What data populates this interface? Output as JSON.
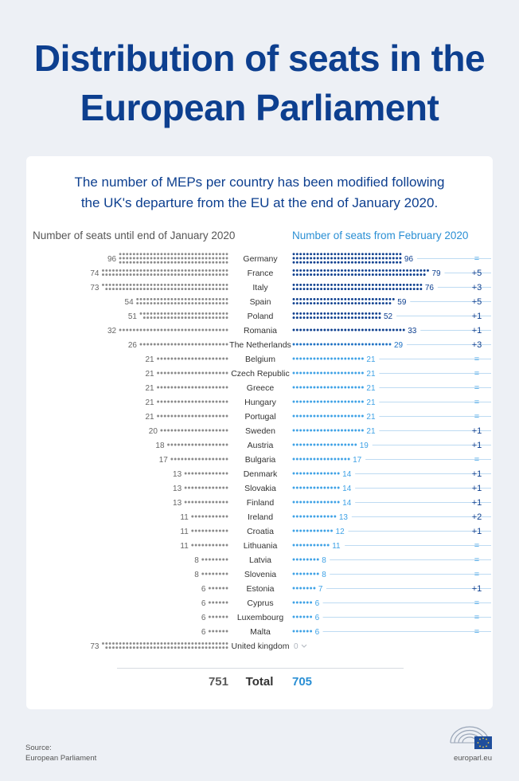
{
  "title": "Distribution of seats in the European Parliament",
  "subtitle_line1": "The number of MEPs per country has been modified following",
  "subtitle_line2": "the UK's departure from the EU at the end of January 2020.",
  "left_header": "Number of seats until end of January 2020",
  "right_header": "Number of seats from February 2020",
  "chart_data": {
    "type": "bar",
    "title": "Distribution of seats in the European Parliament",
    "series": [
      {
        "name": "Number of seats until end of January 2020",
        "color": "#8a8a8a"
      },
      {
        "name": "Number of seats from February 2020",
        "color": "#0d3f8f"
      }
    ],
    "countries": [
      {
        "name": "Germany",
        "old": 96,
        "new": 96,
        "change": "="
      },
      {
        "name": "France",
        "old": 74,
        "new": 79,
        "change": "+5"
      },
      {
        "name": "Italy",
        "old": 73,
        "new": 76,
        "change": "+3"
      },
      {
        "name": "Spain",
        "old": 54,
        "new": 59,
        "change": "+5"
      },
      {
        "name": "Poland",
        "old": 51,
        "new": 52,
        "change": "+1"
      },
      {
        "name": "Romania",
        "old": 32,
        "new": 33,
        "change": "+1"
      },
      {
        "name": "The Netherlands",
        "old": 26,
        "new": 29,
        "change": "+3"
      },
      {
        "name": "Belgium",
        "old": 21,
        "new": 21,
        "change": "="
      },
      {
        "name": "Czech Republic",
        "old": 21,
        "new": 21,
        "change": "="
      },
      {
        "name": "Greece",
        "old": 21,
        "new": 21,
        "change": "="
      },
      {
        "name": "Hungary",
        "old": 21,
        "new": 21,
        "change": "="
      },
      {
        "name": "Portugal",
        "old": 21,
        "new": 21,
        "change": "="
      },
      {
        "name": "Sweden",
        "old": 20,
        "new": 21,
        "change": "+1"
      },
      {
        "name": "Austria",
        "old": 18,
        "new": 19,
        "change": "+1"
      },
      {
        "name": "Bulgaria",
        "old": 17,
        "new": 17,
        "change": "="
      },
      {
        "name": "Denmark",
        "old": 13,
        "new": 14,
        "change": "+1"
      },
      {
        "name": "Slovakia",
        "old": 13,
        "new": 14,
        "change": "+1"
      },
      {
        "name": "Finland",
        "old": 13,
        "new": 14,
        "change": "+1"
      },
      {
        "name": "Ireland",
        "old": 11,
        "new": 13,
        "change": "+2"
      },
      {
        "name": "Croatia",
        "old": 11,
        "new": 12,
        "change": "+1"
      },
      {
        "name": "Lithuania",
        "old": 11,
        "new": 11,
        "change": "="
      },
      {
        "name": "Latvia",
        "old": 8,
        "new": 8,
        "change": "="
      },
      {
        "name": "Slovenia",
        "old": 8,
        "new": 8,
        "change": "="
      },
      {
        "name": "Estonia",
        "old": 6,
        "new": 7,
        "change": "+1"
      },
      {
        "name": "Cyprus",
        "old": 6,
        "new": 6,
        "change": "="
      },
      {
        "name": "Luxembourg",
        "old": 6,
        "new": 6,
        "change": "="
      },
      {
        "name": "Malta",
        "old": 6,
        "new": 6,
        "change": "="
      },
      {
        "name": "United kingdom",
        "old": 73,
        "new": 0,
        "change": ""
      }
    ],
    "total": {
      "label": "Total",
      "old": 751,
      "new": 705
    }
  },
  "colors": {
    "title": "#0d3f8f",
    "dark_blue": "#0d3f8f",
    "mid_blue": "#1f72c4",
    "light_blue": "#3fa2e6",
    "grey_dot": "#8a8a8a",
    "grey_text": "#666666"
  },
  "footer": {
    "source_line1": "Source:",
    "source_line2": "European Parliament",
    "site": "europarl.eu"
  },
  "logo_icon": "european-parliament-hemicycle-logo"
}
